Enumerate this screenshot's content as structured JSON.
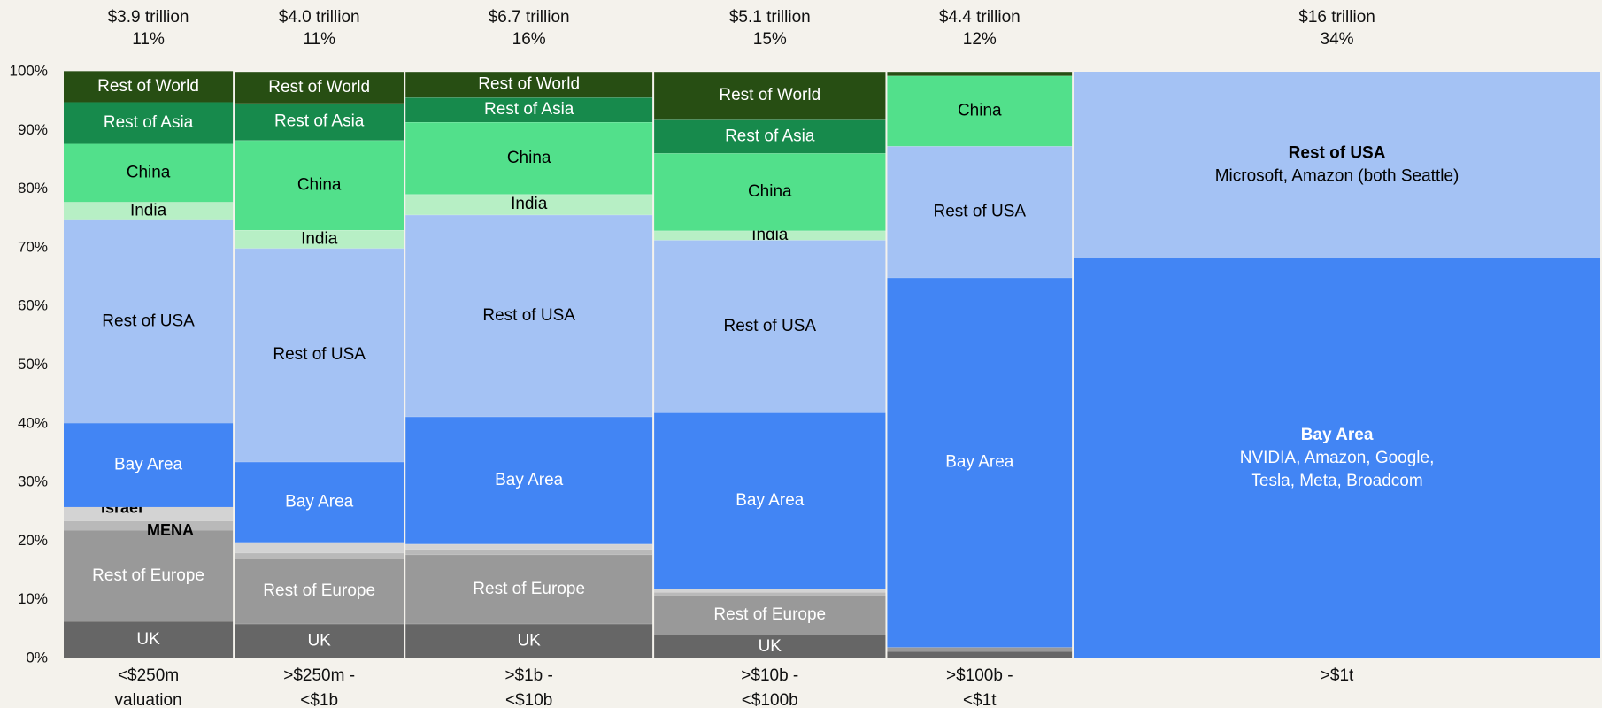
{
  "chart_data": {
    "type": "marimekko",
    "totals": [
      3.9,
      4.0,
      6.7,
      5.1,
      4.4,
      16
    ],
    "total_labels": [
      "$3.9 trillion",
      "$4.0 trillion",
      "$6.7 trillion",
      "$5.1 trillion",
      "$4.4 trillion",
      "$16 trillion"
    ],
    "shares": [
      11,
      11,
      16,
      15,
      12,
      34
    ],
    "share_labels": [
      "11%",
      "11%",
      "16%",
      "15%",
      "12%",
      "34%"
    ],
    "categories": [
      [
        "<$250m",
        "valuation"
      ],
      [
        ">$250m -",
        "<$1b"
      ],
      [
        ">$1b -",
        "<$10b"
      ],
      [
        ">$10b -",
        "<$100b"
      ],
      [
        ">$100b -",
        "<$1t"
      ],
      [
        ">$1t"
      ]
    ],
    "ylim": [
      0,
      100
    ],
    "yticks": [
      {
        "value": 0,
        "label": "0%"
      },
      {
        "value": 10,
        "label": "10%"
      },
      {
        "value": 20,
        "label": "20%"
      },
      {
        "value": 30,
        "label": "30%"
      },
      {
        "value": 40,
        "label": "40%"
      },
      {
        "value": 50,
        "label": "50%"
      },
      {
        "value": 60,
        "label": "60%"
      },
      {
        "value": 70,
        "label": "70%"
      },
      {
        "value": 80,
        "label": "80%"
      },
      {
        "value": 90,
        "label": "90%"
      },
      {
        "value": 100,
        "label": "100%"
      }
    ],
    "series": [
      {
        "name": "UK",
        "color": "#666666",
        "label_color": "#ffffff",
        "values": [
          6.3,
          5.9,
          5.9,
          4.0,
          1.2,
          0
        ]
      },
      {
        "name": "Rest of Europe",
        "color": "#999999",
        "label_color": "#ffffff",
        "values": [
          15.5,
          11.1,
          11.8,
          6.8,
          0.7,
          0
        ]
      },
      {
        "name": "MENA",
        "color": "#b9b9b9",
        "label_color": "#000000",
        "values": [
          1.6,
          1.0,
          0.9,
          0.5,
          0,
          0
        ]
      },
      {
        "name": "Israel",
        "color": "#d3d3d3",
        "label_color": "#000000",
        "values": [
          2.4,
          1.8,
          0.9,
          0.5,
          0,
          0
        ]
      },
      {
        "name": "Bay Area",
        "color": "#4285f4",
        "label_color": "#ffffff",
        "values": [
          14.3,
          13.7,
          21.7,
          30.1,
          63.0,
          68.2
        ],
        "notes": [
          null,
          null,
          null,
          null,
          null,
          [
            "NVIDIA, Amazon, Google,",
            "Tesla, Meta, Broadcom"
          ]
        ]
      },
      {
        "name": "Rest of USA",
        "color": "#a4c2f4",
        "label_color": "#000000",
        "values": [
          34.6,
          36.4,
          34.4,
          29.4,
          22.4,
          31.8
        ],
        "notes": [
          null,
          null,
          null,
          null,
          null,
          [
            "Microsoft, Amazon (both Seattle)"
          ]
        ]
      },
      {
        "name": "India",
        "color": "#b7efc5",
        "label_color": "#000000",
        "values": [
          3.1,
          3.1,
          3.5,
          1.6,
          0,
          0
        ]
      },
      {
        "name": "China",
        "color": "#52e08b",
        "label_color": "#000000",
        "values": [
          9.9,
          15.3,
          12.3,
          13.2,
          12.0,
          0
        ]
      },
      {
        "name": "Rest of Asia",
        "color": "#178a4c",
        "label_color": "#ffffff",
        "values": [
          7.1,
          6.3,
          4.2,
          5.7,
          0,
          0
        ]
      },
      {
        "name": "Rest of World",
        "color": "#274e13",
        "label_color": "#ffffff",
        "values": [
          5.3,
          5.4,
          4.4,
          8.2,
          0.7,
          0
        ]
      }
    ]
  }
}
